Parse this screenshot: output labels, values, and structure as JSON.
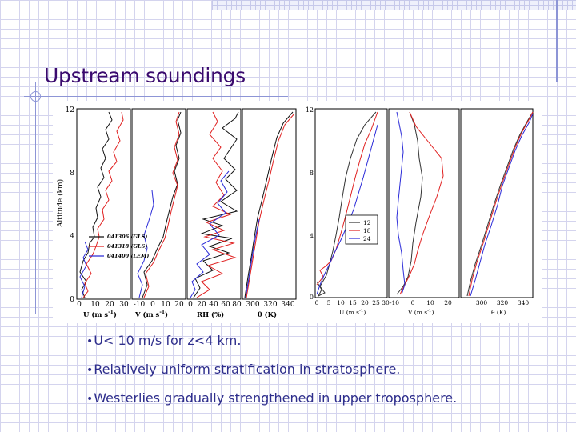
{
  "slide": {
    "title": "Upstream soundings",
    "bullets": [
      "U< 10 m/s for z<4 km.",
      "Relatively uniform stratification in stratosphere.",
      "Westerlies gradually strengthened in upper troposphere."
    ]
  },
  "figure_left": {
    "ylabel": "Altitude (km)",
    "y_ticks": [
      "12",
      "8",
      "4",
      "0"
    ],
    "panels": [
      {
        "xlabel": "U (m s",
        "unit_sup": "-1",
        "ticks": [
          "0",
          "10",
          "20",
          "30"
        ]
      },
      {
        "xlabel": "V (m s",
        "unit_sup": "-1",
        "ticks": [
          "-10",
          "0",
          "10",
          "20"
        ]
      },
      {
        "xlabel": "RH (%)",
        "unit_sup": "",
        "ticks": [
          "0",
          "20",
          "40",
          "60",
          "80"
        ]
      },
      {
        "xlabel": "θ (K)",
        "unit_sup": "",
        "ticks": [
          "300",
          "320",
          "340"
        ]
      }
    ],
    "legend": [
      {
        "label": "041306 (GLS)",
        "color": "#111111"
      },
      {
        "label": "041318 (GLS)",
        "color": "#e02020"
      },
      {
        "label": "041400 (LEM)",
        "color": "#2a2ad8"
      }
    ]
  },
  "figure_right": {
    "y_ticks": [
      "12",
      "8",
      "4",
      "0"
    ],
    "panels": [
      {
        "xlabel": "U (m s",
        "unit_sup": "-1",
        "ticks": [
          "0",
          "5",
          "10",
          "15",
          "20",
          "25"
        ]
      },
      {
        "xlabel": "V (m s",
        "unit_sup": "-1",
        "ticks": [
          "-10",
          "0",
          "10",
          "20"
        ],
        "left_tick": "30"
      },
      {
        "xlabel": "θ (K)",
        "unit_sup": "",
        "ticks": [
          "300",
          "320",
          "340"
        ]
      }
    ],
    "legend": [
      {
        "label": "12",
        "color": "#333333"
      },
      {
        "label": "18",
        "color": "#e02020"
      },
      {
        "label": "24",
        "color": "#2a2ad8"
      }
    ]
  },
  "colors": {
    "title": "#3a0a6e",
    "bullet_text": "#2e2e8c",
    "grid": "#d4d4ee",
    "accent_rule": "#8d95d6",
    "series_black": "#111111",
    "series_red": "#e02020",
    "series_blue": "#2a2ad8"
  }
}
